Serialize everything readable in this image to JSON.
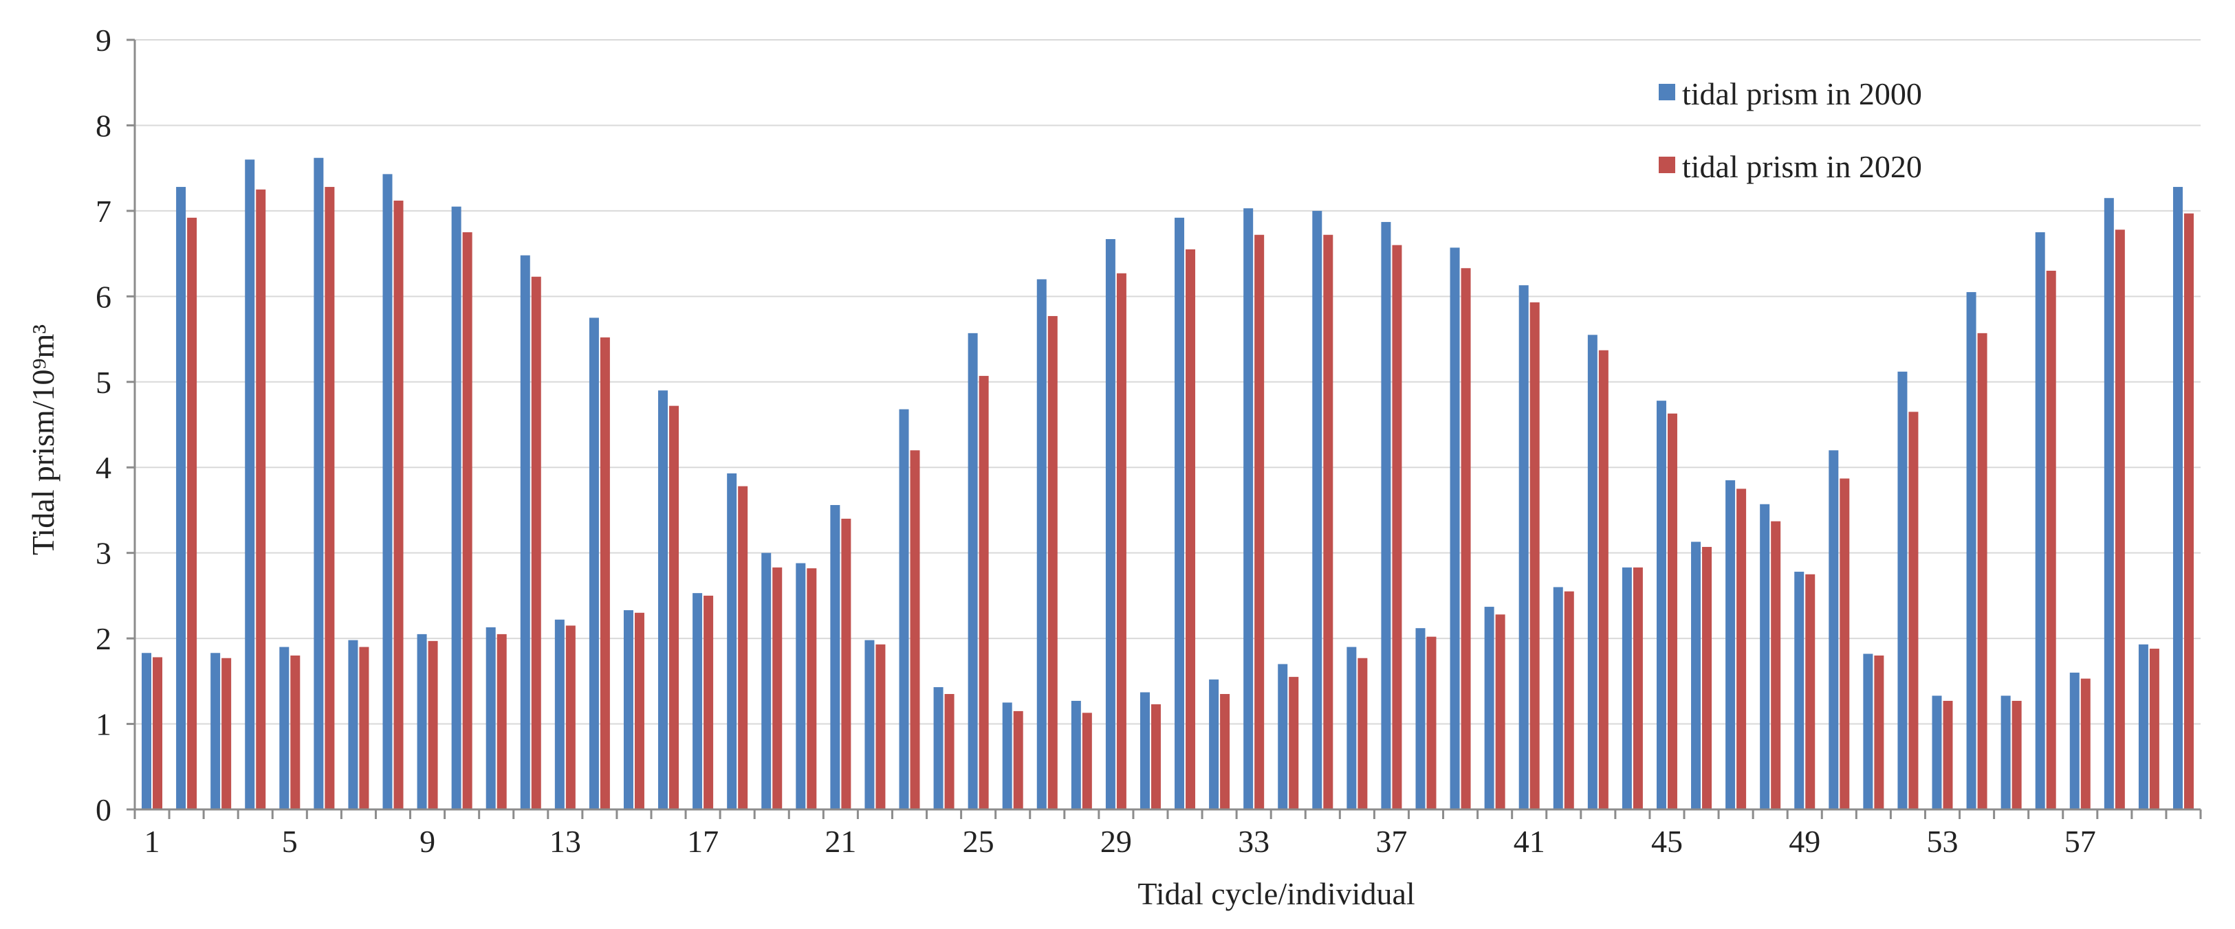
{
  "chart_data": {
    "type": "bar",
    "title": "",
    "xlabel": "Tidal cycle/individual",
    "ylabel": "Tidal prism/10⁹m³",
    "ylim": [
      0,
      9
    ],
    "yticks": [
      0,
      1,
      2,
      3,
      4,
      5,
      6,
      7,
      8,
      9
    ],
    "ytick_labels": [
      "0",
      "1",
      "2",
      "3",
      "4",
      "5",
      "6",
      "7",
      "8",
      "9"
    ],
    "grid": true,
    "legend_position": "top-right",
    "categories": [
      1,
      2,
      3,
      4,
      5,
      6,
      7,
      8,
      9,
      10,
      11,
      12,
      13,
      14,
      15,
      16,
      17,
      18,
      19,
      20,
      21,
      22,
      23,
      24,
      25,
      26,
      27,
      28,
      29,
      30,
      31,
      32,
      33,
      34,
      35,
      36,
      37,
      38,
      39,
      40,
      41,
      42,
      43,
      44,
      45,
      46,
      47,
      48,
      49,
      50,
      51,
      52,
      53,
      54,
      55,
      56,
      57,
      58,
      59,
      60
    ],
    "xtick_labels": [
      "1",
      "5",
      "9",
      "13",
      "17",
      "21",
      "25",
      "29",
      "33",
      "37",
      "41",
      "45",
      "49",
      "53",
      "57"
    ],
    "xtick_categories": [
      1,
      5,
      9,
      13,
      17,
      21,
      25,
      29,
      33,
      37,
      41,
      45,
      49,
      53,
      57
    ],
    "series": [
      {
        "name": "tidal prism in 2000",
        "color": "#4f81bd",
        "values": [
          1.83,
          7.28,
          1.83,
          7.6,
          1.9,
          7.62,
          1.98,
          7.43,
          2.05,
          7.05,
          2.13,
          6.48,
          2.22,
          5.75,
          2.33,
          4.9,
          2.53,
          3.93,
          3.0,
          2.88,
          3.56,
          1.98,
          4.68,
          1.43,
          5.57,
          1.25,
          6.2,
          1.27,
          6.67,
          1.37,
          6.92,
          1.52,
          7.03,
          1.7,
          7.0,
          1.9,
          6.87,
          2.12,
          6.57,
          2.37,
          6.13,
          2.6,
          5.55,
          2.83,
          4.78,
          3.13,
          3.85,
          3.57,
          2.78,
          4.2,
          1.82,
          5.12,
          1.33,
          6.05,
          1.33,
          6.75,
          1.6,
          7.15,
          1.93,
          7.28
        ]
      },
      {
        "name": "tidal prism in 2020",
        "color": "#c0504d",
        "values": [
          1.78,
          6.92,
          1.77,
          7.25,
          1.8,
          7.28,
          1.9,
          7.12,
          1.97,
          6.75,
          2.05,
          6.23,
          2.15,
          5.52,
          2.3,
          4.72,
          2.5,
          3.78,
          2.83,
          2.82,
          3.4,
          1.93,
          4.2,
          1.35,
          5.07,
          1.15,
          5.77,
          1.13,
          6.27,
          1.23,
          6.55,
          1.35,
          6.72,
          1.55,
          6.72,
          1.77,
          6.6,
          2.02,
          6.33,
          2.28,
          5.93,
          2.55,
          5.37,
          2.83,
          4.63,
          3.07,
          3.75,
          3.37,
          2.75,
          3.87,
          1.8,
          4.65,
          1.27,
          5.57,
          1.27,
          6.3,
          1.53,
          6.78,
          1.88,
          6.97
        ]
      }
    ]
  }
}
